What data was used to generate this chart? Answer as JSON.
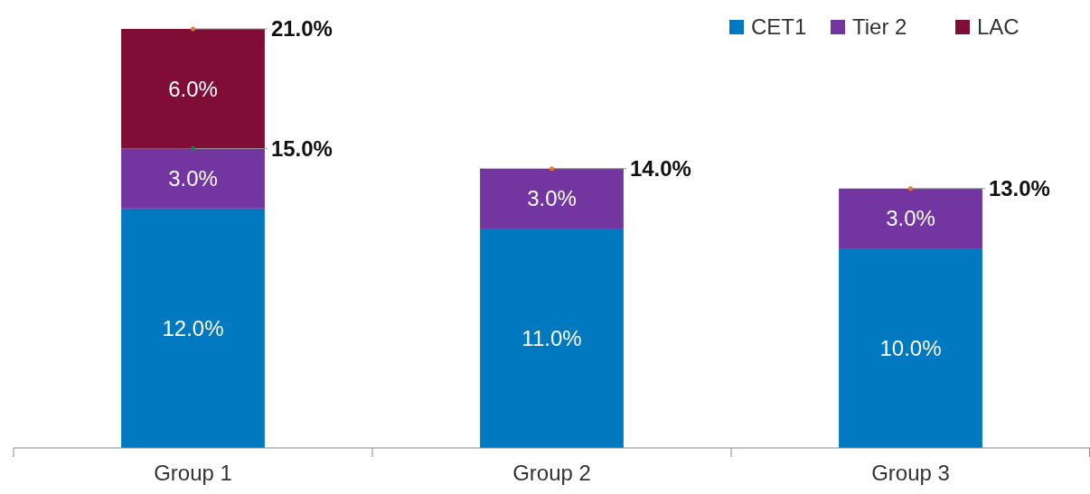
{
  "chart_data": {
    "type": "bar",
    "stacked": true,
    "categories": [
      "Group 1",
      "Group 2",
      "Group 3"
    ],
    "series": [
      {
        "name": "CET1",
        "color": "#0079c1",
        "values": [
          12,
          11,
          10
        ],
        "value_labels": [
          "12.0%",
          "11.0%",
          "10.0%"
        ]
      },
      {
        "name": "Tier 2",
        "color": "#7335a0",
        "values": [
          3,
          3,
          3
        ],
        "value_labels": [
          "3.0%",
          "3.0%",
          "3.0%"
        ]
      },
      {
        "name": "LAC",
        "color": "#7f0d35",
        "values": [
          6,
          null,
          null
        ],
        "value_labels": [
          "6.0%",
          null,
          null
        ]
      }
    ],
    "totals": [
      "21.0%",
      "14.0%",
      "13.0%"
    ],
    "annotations": [
      {
        "text": "15.0%",
        "x": "Group 1",
        "y": 15
      }
    ],
    "legend": "top right"
  }
}
